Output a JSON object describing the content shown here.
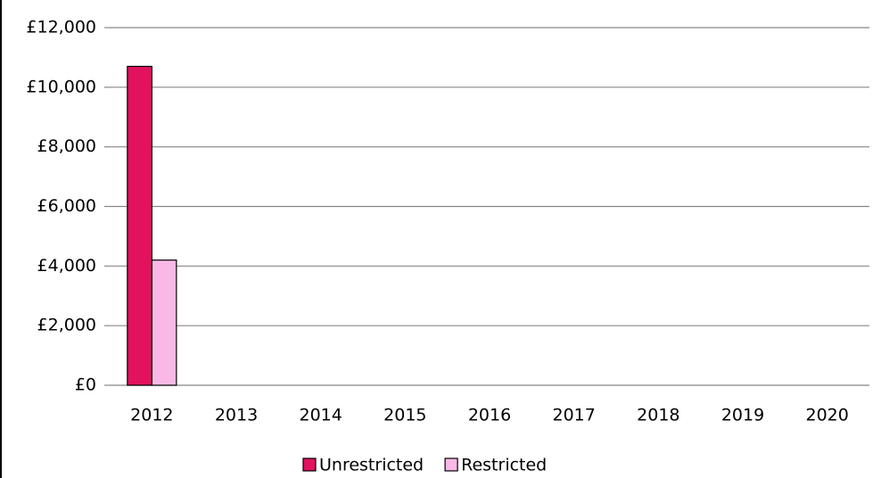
{
  "chart_data": {
    "type": "bar",
    "categories": [
      "2012",
      "2013",
      "2014",
      "2015",
      "2016",
      "2017",
      "2018",
      "2019",
      "2020"
    ],
    "series": [
      {
        "name": "Unrestricted",
        "color": "#e2125e",
        "values": [
          10700,
          null,
          null,
          null,
          null,
          null,
          null,
          null,
          null
        ]
      },
      {
        "name": "Restricted",
        "color": "#f9b8e6",
        "values": [
          4200,
          null,
          null,
          null,
          null,
          null,
          null,
          null,
          null
        ]
      }
    ],
    "ylim": [
      0,
      12000
    ],
    "yticks": [
      {
        "value": 0,
        "label": "£0"
      },
      {
        "value": 2000,
        "label": "£2,000"
      },
      {
        "value": 4000,
        "label": "£4,000"
      },
      {
        "value": 6000,
        "label": "£6,000"
      },
      {
        "value": 8000,
        "label": "£8,000"
      },
      {
        "value": 10000,
        "label": "£10,000"
      },
      {
        "value": 12000,
        "label": "£12,000"
      }
    ],
    "grid": true,
    "legend": "bottom"
  }
}
